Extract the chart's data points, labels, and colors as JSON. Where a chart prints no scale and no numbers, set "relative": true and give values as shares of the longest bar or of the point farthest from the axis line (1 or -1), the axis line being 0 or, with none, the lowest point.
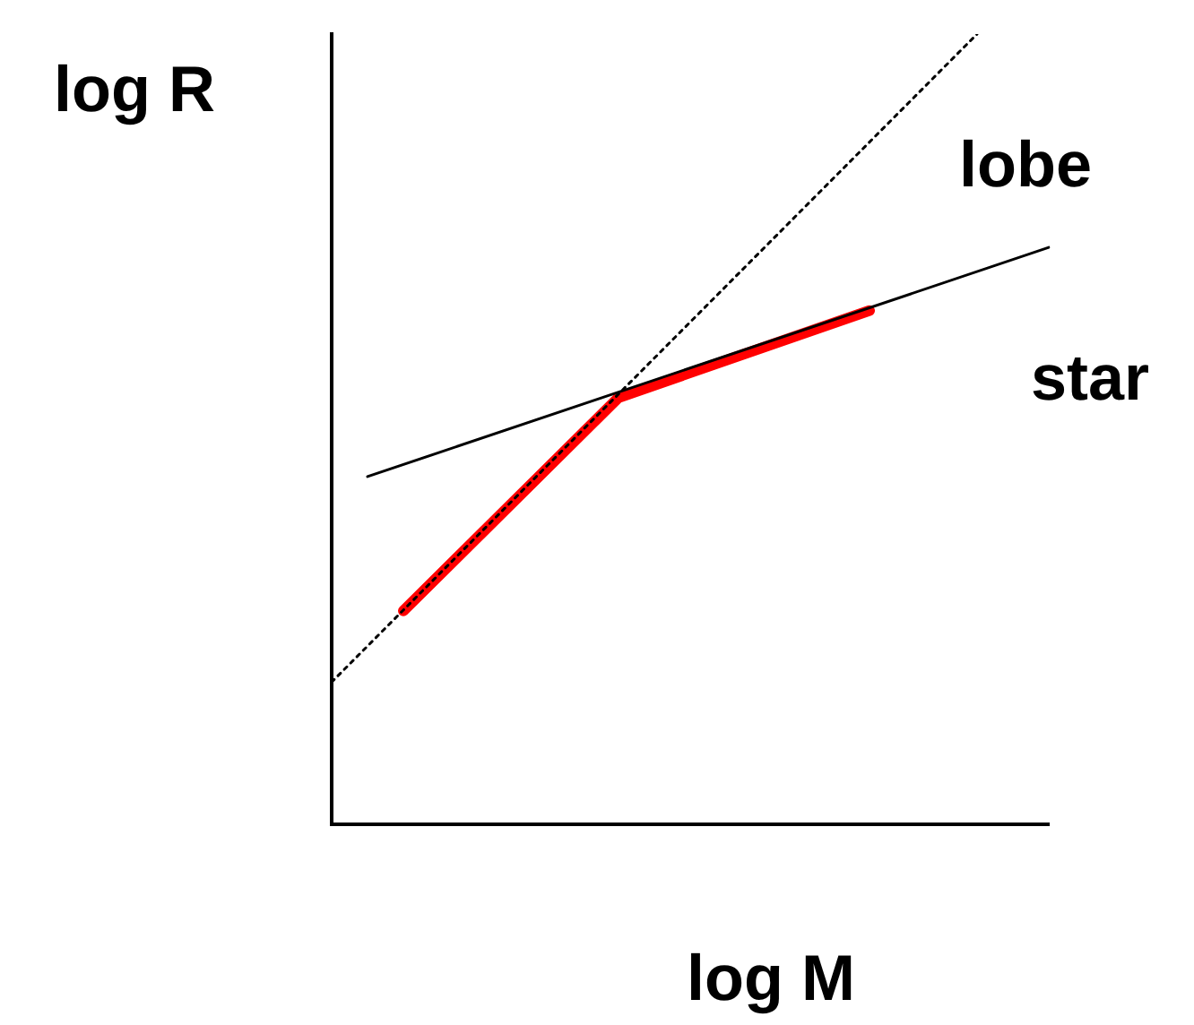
{
  "chart_data": {
    "type": "line",
    "relative": true,
    "xlabel": "log M",
    "ylabel": "log R",
    "grid": false,
    "legend": false,
    "marker": "none",
    "categories": [
      null,
      null,
      null,
      null,
      null,
      null,
      null,
      null,
      null,
      null,
      null,
      null,
      null,
      null,
      null,
      null,
      null,
      null,
      null,
      null,
      null
    ],
    "series": [
      {
        "name": "lobe",
        "color": "#000000",
        "line_style": "dotted",
        "values": [
          0.18,
          null,
          null,
          null,
          null,
          null,
          null,
          null,
          null,
          null,
          null,
          null,
          null,
          null,
          null,
          null,
          null,
          null,
          1,
          null,
          null
        ]
      },
      {
        "name": "star",
        "color": "#000000",
        "line_style": "solid",
        "values": [
          null,
          0.44,
          null,
          null,
          null,
          null,
          null,
          null,
          null,
          null,
          null,
          null,
          null,
          null,
          null,
          null,
          null,
          null,
          null,
          null,
          0.73
        ]
      },
      {
        "color": "#ff0000",
        "line_style": "solid",
        "values": [
          null,
          null,
          0.27,
          null,
          null,
          null,
          null,
          null,
          0.54,
          null,
          null,
          null,
          null,
          null,
          null,
          0.65,
          null,
          null,
          null,
          null,
          null
        ]
      }
    ]
  }
}
